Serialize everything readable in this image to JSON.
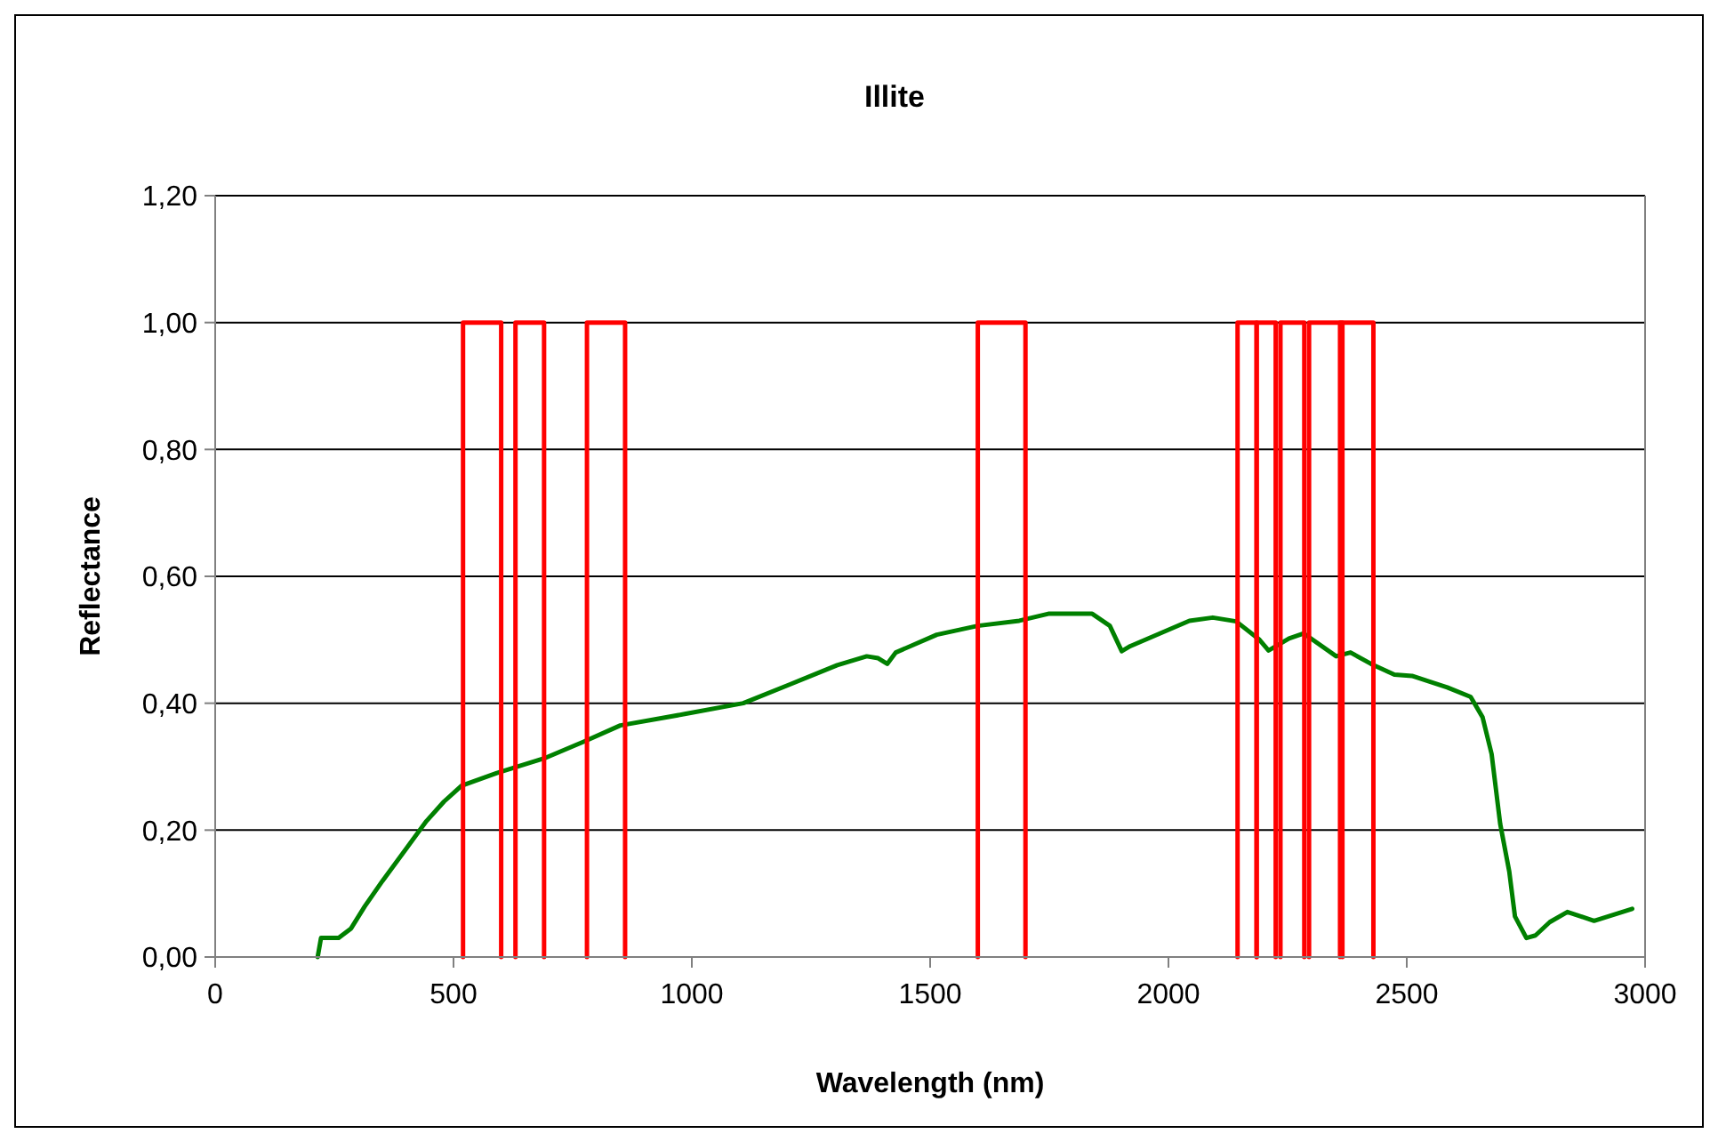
{
  "chart_data": {
    "type": "line",
    "title": "Illite",
    "xlabel": "Wavelength (nm)",
    "ylabel": "Reflectance",
    "xlim": [
      0,
      3000
    ],
    "xticks": [
      0,
      500,
      1000,
      1500,
      2000,
      2500,
      3000
    ],
    "ylim": [
      0,
      1.2
    ],
    "yticks": [
      {
        "value": 0,
        "label": "0,00"
      },
      {
        "value": 0.2,
        "label": "0,20"
      },
      {
        "value": 0.4,
        "label": "0,40"
      },
      {
        "value": 0.6,
        "label": "0,60"
      },
      {
        "value": 0.8,
        "label": "0,80"
      },
      {
        "value": 1,
        "label": "1,00"
      },
      {
        "value": 1.2,
        "label": "1,20"
      }
    ],
    "grid": "y",
    "marker": "none",
    "line_style": "solid",
    "series": [
      {
        "color": "#008000",
        "x": [
          215,
          222,
          259,
          285,
          314,
          351,
          400,
          443,
          480,
          517,
          591,
          690,
          775,
          850,
          985,
          1108,
          1207,
          1305,
          1367,
          1391,
          1410,
          1428,
          1514,
          1600,
          1687,
          1748,
          1840,
          1877,
          1902,
          1920,
          1982,
          2044,
          2093,
          2142,
          2191,
          2210,
          2253,
          2284,
          2352,
          2382,
          2425,
          2474,
          2511,
          2585,
          2634,
          2659,
          2678,
          2696,
          2715,
          2727,
          2751,
          2770,
          2800,
          2837,
          2893,
          2973
        ],
        "values": [
          0,
          0.03,
          0.03,
          0.045,
          0.08,
          0.12,
          0.17,
          0.214,
          0.245,
          0.27,
          0.29,
          0.313,
          0.34,
          0.365,
          0.383,
          0.4,
          0.43,
          0.46,
          0.474,
          0.471,
          0.462,
          0.48,
          0.508,
          0.522,
          0.53,
          0.541,
          0.541,
          0.522,
          0.482,
          0.49,
          0.51,
          0.53,
          0.535,
          0.529,
          0.5,
          0.483,
          0.502,
          0.51,
          0.474,
          0.48,
          0.462,
          0.445,
          0.443,
          0.425,
          0.41,
          0.378,
          0.32,
          0.21,
          0.135,
          0.064,
          0.03,
          0.034,
          0.055,
          0.071,
          0.057,
          0.076
        ]
      },
      {
        "color": "#ff0000",
        "x": [
          520,
          520,
          600,
          600
        ],
        "values": [
          0,
          1,
          1,
          0
        ]
      },
      {
        "color": "#ff0000",
        "x": [
          630,
          630,
          690,
          690
        ],
        "values": [
          0,
          1,
          1,
          0
        ]
      },
      {
        "color": "#ff0000",
        "x": [
          780,
          780,
          860,
          860
        ],
        "values": [
          0,
          1,
          1,
          0
        ]
      },
      {
        "color": "#ff0000",
        "x": [
          1600,
          1600,
          1700,
          1700
        ],
        "values": [
          0,
          1,
          1,
          0
        ]
      },
      {
        "color": "#ff0000",
        "x": [
          2145,
          2145,
          2185,
          2185
        ],
        "values": [
          0,
          1,
          1,
          0
        ]
      },
      {
        "color": "#ff0000",
        "x": [
          2185,
          2185,
          2225,
          2225
        ],
        "values": [
          0,
          1,
          1,
          0
        ]
      },
      {
        "color": "#ff0000",
        "x": [
          2235,
          2235,
          2285,
          2285
        ],
        "values": [
          0,
          1,
          1,
          0
        ]
      },
      {
        "color": "#ff0000",
        "x": [
          2295,
          2295,
          2365,
          2365
        ],
        "values": [
          0,
          1,
          1,
          0
        ]
      },
      {
        "color": "#ff0000",
        "x": [
          2360,
          2360,
          2430,
          2430
        ],
        "values": [
          0,
          1,
          1,
          0
        ]
      }
    ]
  }
}
